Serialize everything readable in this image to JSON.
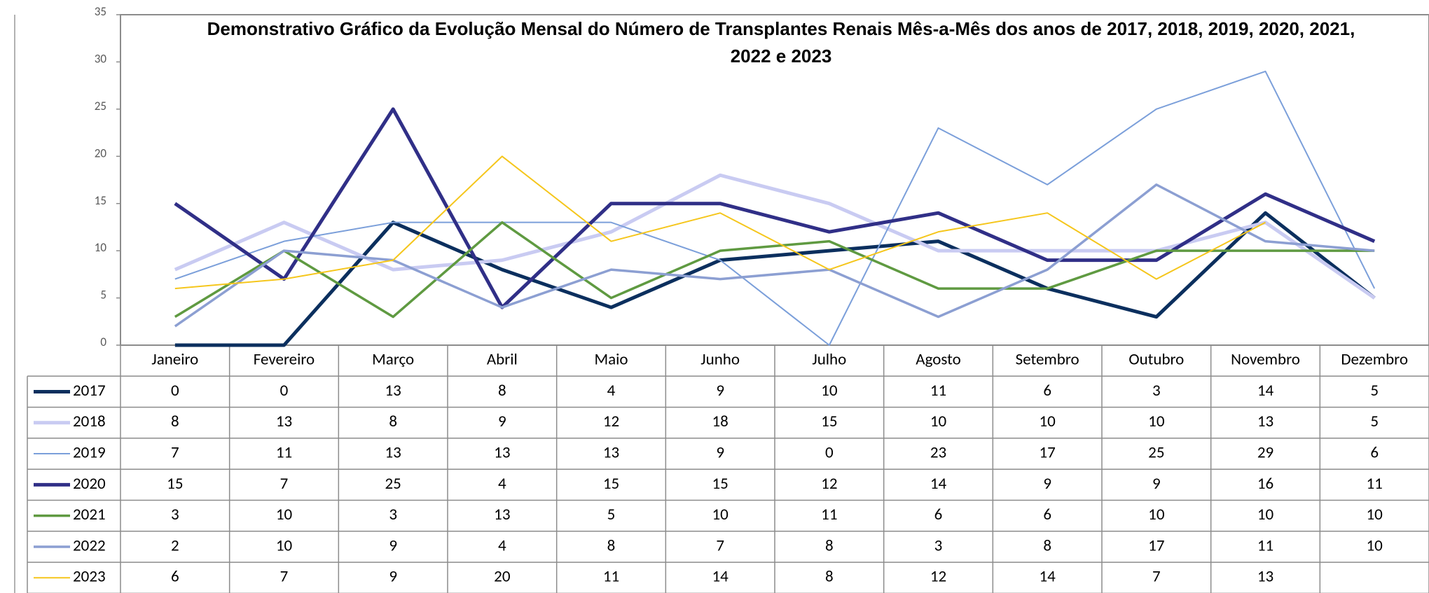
{
  "chart_data": {
    "type": "line",
    "title": "Demonstrativo Gráfico da Evolução Mensal do Número de Transplantes Renais Mês-a-Mês dos anos de  2017, 2018, 2019, 2020, 2021, 2022 e 2023",
    "categories": [
      "Janeiro",
      "Fevereiro",
      "Março",
      "Abril",
      "Maio",
      "Junho",
      "Julho",
      "Agosto",
      "Setembro",
      "Outubro",
      "Novembro",
      "Dezembro"
    ],
    "series": [
      {
        "name": "2017",
        "color": "#0b2f5e",
        "values": [
          0,
          0,
          13,
          8,
          4,
          9,
          10,
          11,
          6,
          3,
          14,
          5
        ]
      },
      {
        "name": "2018",
        "color": "#c9cbf2",
        "values": [
          8,
          13,
          8,
          9,
          12,
          18,
          15,
          10,
          10,
          10,
          13,
          5
        ]
      },
      {
        "name": "2019",
        "color": "#7b9fda",
        "values": [
          7,
          11,
          13,
          13,
          13,
          9,
          0,
          23,
          17,
          25,
          29,
          6
        ]
      },
      {
        "name": "2020",
        "color": "#302f87",
        "values": [
          15,
          7,
          25,
          4,
          15,
          15,
          12,
          14,
          9,
          9,
          16,
          11
        ]
      },
      {
        "name": "2021",
        "color": "#5f9a41",
        "values": [
          3,
          10,
          3,
          13,
          5,
          10,
          11,
          6,
          6,
          10,
          10,
          10
        ]
      },
      {
        "name": "2022",
        "color": "#8c9fd2",
        "values": [
          2,
          10,
          9,
          4,
          8,
          7,
          8,
          3,
          8,
          17,
          11,
          10
        ]
      },
      {
        "name": "2023",
        "color": "#f5c61c",
        "values": [
          6,
          7,
          9,
          20,
          11,
          14,
          8,
          12,
          14,
          7,
          13,
          null
        ]
      }
    ],
    "ylim": [
      0,
      35
    ],
    "yticks": [
      0,
      5,
      10,
      15,
      20,
      25,
      30,
      35
    ],
    "grid": false,
    "data_table": true
  }
}
